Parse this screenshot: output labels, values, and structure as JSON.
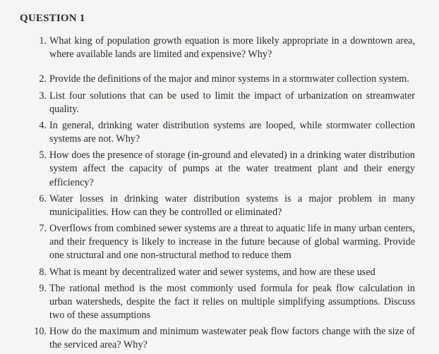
{
  "heading": "QUESTION 1",
  "questions": [
    {
      "n": "1.",
      "text": "What king of population growth equation is more likely appropriate in a downtown area, where available lands are limited and expensive? Why?"
    },
    {
      "n": "2.",
      "text": "Provide the definitions of the major and minor systems in a stormwater collection system."
    },
    {
      "n": "3.",
      "text": "List four solutions that can be used to limit the impact of urbanization on streamwater quality."
    },
    {
      "n": "4.",
      "text": "In general, drinking water distribution systems are looped, while stormwater collection systems are not. Why?"
    },
    {
      "n": "5.",
      "text": "How does the presence of storage (in-ground and elevated) in a drinking water distribution system affect the capacity of pumps at the water treatment plant and their energy efficiency?"
    },
    {
      "n": "6.",
      "text": "Water losses in drinking water distribution systems is a major problem in many municipalities. How can they be controlled or eliminated?"
    },
    {
      "n": "7.",
      "text": "Overflows from combined sewer systems are a threat to aquatic life in many urban centers, and their frequency is likely to increase in the future because of global warming. Provide one structural and one non-structural method to reduce them"
    },
    {
      "n": "8.",
      "text": "What is meant by decentralized water and sewer systems, and how are these used"
    },
    {
      "n": "9.",
      "text": "The rational method is the most commonly used formula for peak flow calculation in urban watersheds, despite the fact it relies on multiple simplifying assumptions. Discuss two of these assumptions"
    },
    {
      "n": "10.",
      "text": "How do the maximum and minimum wastewater peak flow factors change with the size of the serviced area? Why?"
    }
  ],
  "text_color": "#2a2a2a",
  "background_color": "#f5f5f3",
  "heading_fontsize": 15,
  "body_fontsize": 14.2,
  "font_family": "Times New Roman"
}
